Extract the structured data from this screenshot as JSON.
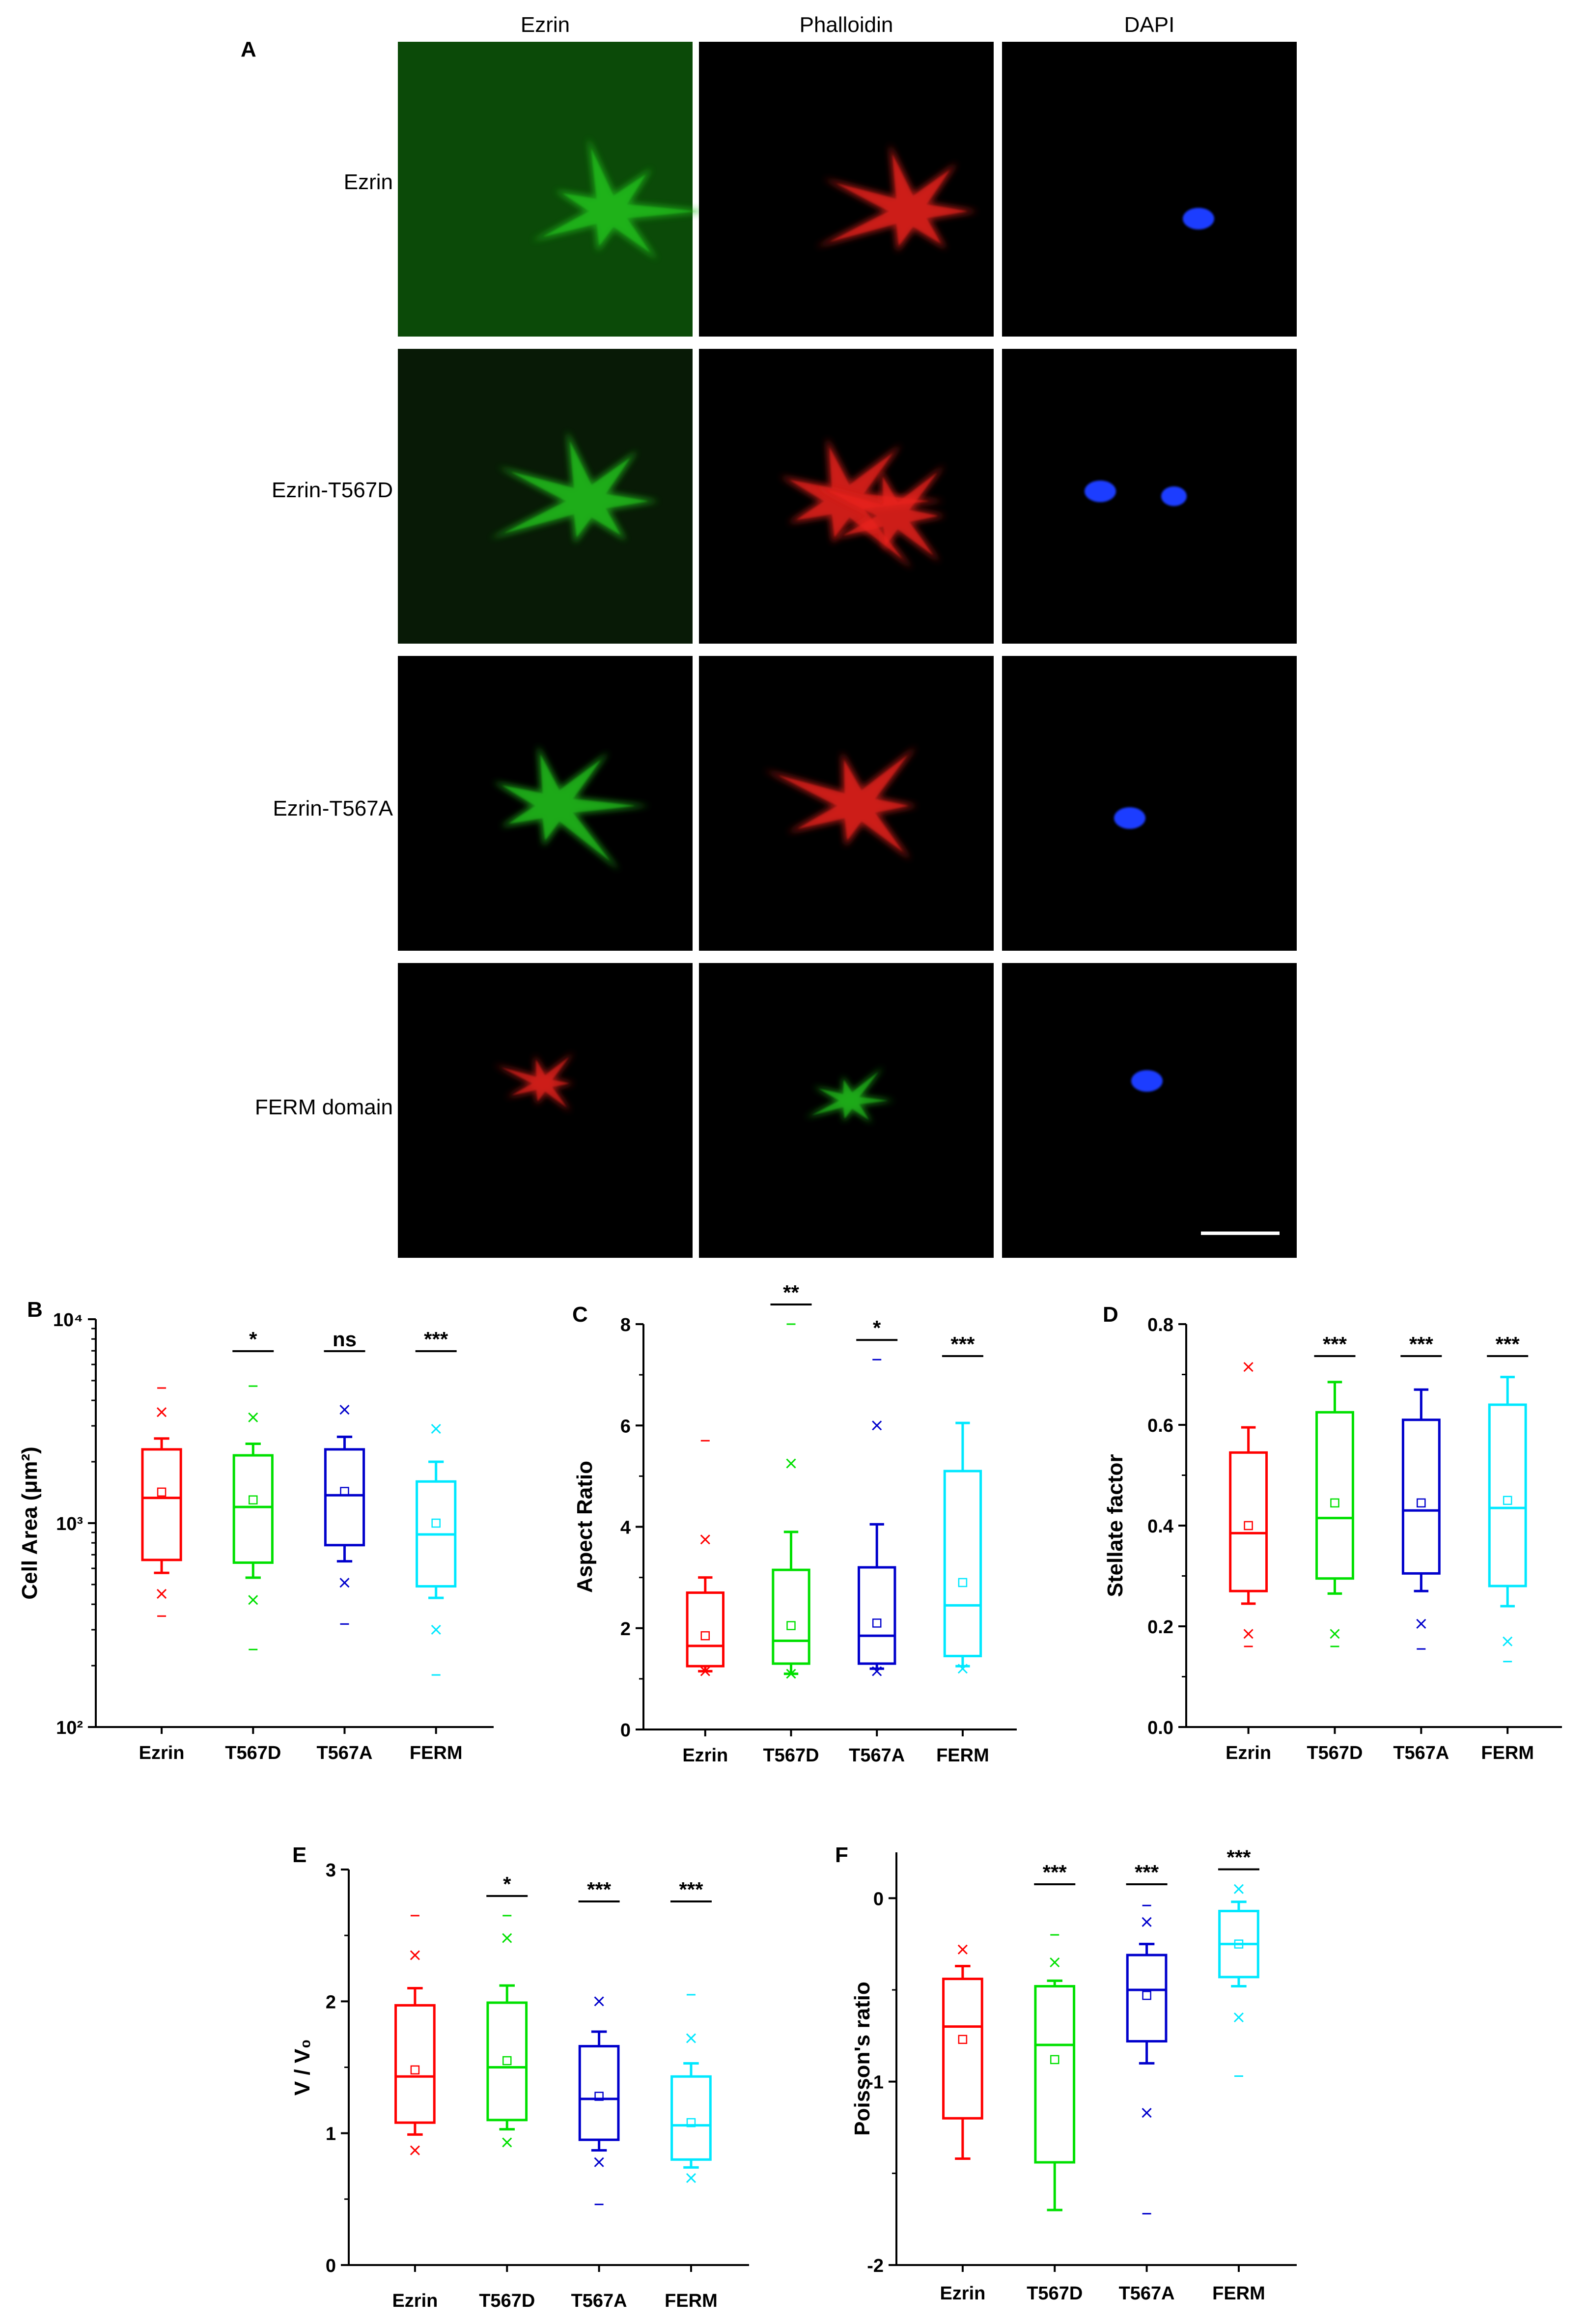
{
  "panel_a": {
    "label": "A",
    "column_headers": [
      "Ezrin",
      "Phalloidin",
      "DAPI"
    ],
    "row_labels": [
      "Ezrin",
      "Ezrin-T567D",
      "Ezrin-T567A",
      "FERM domain"
    ],
    "channel_colors": {
      "green": "#22c01e",
      "red": "#e8231b",
      "blue": "#1f3cff"
    },
    "image_grid": [
      [
        "green",
        "red",
        "blue"
      ],
      [
        "green",
        "red",
        "blue"
      ],
      [
        "green",
        "red",
        "blue"
      ],
      [
        "red",
        "green",
        "blue"
      ]
    ],
    "scale_bar": "white"
  },
  "series_colors": [
    "#ff0000",
    "#00e000",
    "#0000cc",
    "#00e8ff"
  ],
  "chart_data": [
    {
      "panel": "B",
      "type": "box",
      "ylabel": "Cell Area (μm²)",
      "yscale": "log",
      "ylim": [
        100,
        10000
      ],
      "yticks": [
        100,
        1000,
        10000
      ],
      "ytick_labels": [
        "10²",
        "10³",
        "10⁴"
      ],
      "categories": [
        "Ezrin",
        "T567D",
        "T567A",
        "FERM"
      ],
      "significance": [
        "",
        "*",
        "ns",
        "***"
      ],
      "boxes": [
        {
          "q1": 660,
          "median": 1330,
          "q3": 2300,
          "whisker_low": 570,
          "whisker_high": 2600,
          "mean": 1420,
          "outliers_x": [
            450,
            3500
          ],
          "extremes": [
            350,
            4600
          ]
        },
        {
          "q1": 640,
          "median": 1200,
          "q3": 2150,
          "whisker_low": 540,
          "whisker_high": 2450,
          "mean": 1300,
          "outliers_x": [
            420,
            3300
          ],
          "extremes": [
            240,
            4700
          ]
        },
        {
          "q1": 780,
          "median": 1370,
          "q3": 2300,
          "whisker_low": 650,
          "whisker_high": 2650,
          "mean": 1430,
          "outliers_x": [
            510,
            3600
          ],
          "extremes": [
            320
          ]
        },
        {
          "q1": 490,
          "median": 880,
          "q3": 1600,
          "whisker_low": 430,
          "whisker_high": 2000,
          "mean": 1000,
          "outliers_x": [
            300,
            2900
          ],
          "extremes": [
            180
          ]
        }
      ]
    },
    {
      "panel": "C",
      "type": "box",
      "ylabel": "Aspect Ratio",
      "ylim": [
        0,
        8
      ],
      "yticks": [
        0,
        2,
        4,
        6,
        8
      ],
      "categories": [
        "Ezrin",
        "T567D",
        "T567A",
        "FERM"
      ],
      "significance": [
        "",
        "**",
        "*",
        "***"
      ],
      "boxes": [
        {
          "q1": 1.25,
          "median": 1.65,
          "q3": 2.7,
          "whisker_low": 1.15,
          "whisker_high": 3.0,
          "mean": 1.85,
          "outliers_x": [
            1.15,
            3.75
          ],
          "extremes": [
            5.7
          ]
        },
        {
          "q1": 1.3,
          "median": 1.75,
          "q3": 3.15,
          "whisker_low": 1.1,
          "whisker_high": 3.9,
          "mean": 2.05,
          "outliers_x": [
            1.1,
            5.25
          ],
          "extremes": [
            8.0
          ]
        },
        {
          "q1": 1.3,
          "median": 1.85,
          "q3": 3.2,
          "whisker_low": 1.2,
          "whisker_high": 4.05,
          "mean": 2.1,
          "outliers_x": [
            1.15,
            6.0
          ],
          "extremes": [
            7.3
          ]
        },
        {
          "q1": 1.45,
          "median": 2.45,
          "q3": 5.1,
          "whisker_low": 1.25,
          "whisker_high": 6.05,
          "mean": 2.9,
          "outliers_x": [
            1.2
          ],
          "extremes": []
        }
      ]
    },
    {
      "panel": "D",
      "type": "box",
      "ylabel": "Stellate factor",
      "ylim": [
        0,
        0.8
      ],
      "yticks": [
        0.0,
        0.2,
        0.4,
        0.6,
        0.8
      ],
      "ytick_labels": [
        "0.0",
        "0.2",
        "0.4",
        "0.6",
        "0.8"
      ],
      "categories": [
        "Ezrin",
        "T567D",
        "T567A",
        "FERM"
      ],
      "significance": [
        "",
        "***",
        "***",
        "***"
      ],
      "boxes": [
        {
          "q1": 0.27,
          "median": 0.385,
          "q3": 0.545,
          "whisker_low": 0.245,
          "whisker_high": 0.595,
          "mean": 0.4,
          "outliers_x": [
            0.185,
            0.715
          ],
          "extremes": [
            0.16
          ]
        },
        {
          "q1": 0.295,
          "median": 0.415,
          "q3": 0.625,
          "whisker_low": 0.265,
          "whisker_high": 0.685,
          "mean": 0.445,
          "outliers_x": [
            0.185
          ],
          "extremes": [
            0.16
          ]
        },
        {
          "q1": 0.305,
          "median": 0.43,
          "q3": 0.61,
          "whisker_low": 0.27,
          "whisker_high": 0.67,
          "mean": 0.445,
          "outliers_x": [
            0.205
          ],
          "extremes": [
            0.155
          ]
        },
        {
          "q1": 0.28,
          "median": 0.435,
          "q3": 0.64,
          "whisker_low": 0.24,
          "whisker_high": 0.695,
          "mean": 0.45,
          "outliers_x": [
            0.17
          ],
          "extremes": [
            0.13
          ]
        }
      ]
    },
    {
      "panel": "E",
      "type": "box",
      "ylabel": "V / V₀",
      "ylim": [
        0,
        3
      ],
      "yticks": [
        0,
        1,
        2,
        3
      ],
      "categories": [
        "Ezrin",
        "T567D",
        "T567A",
        "FERM"
      ],
      "significance": [
        "",
        "*",
        "***",
        "***"
      ],
      "boxes": [
        {
          "q1": 1.08,
          "median": 1.43,
          "q3": 1.97,
          "whisker_low": 0.99,
          "whisker_high": 2.1,
          "mean": 1.48,
          "outliers_x": [
            0.87,
            2.35
          ],
          "extremes": [
            2.65
          ]
        },
        {
          "q1": 1.1,
          "median": 1.5,
          "q3": 1.99,
          "whisker_low": 1.03,
          "whisker_high": 2.12,
          "mean": 1.55,
          "outliers_x": [
            0.93,
            2.48
          ],
          "extremes": [
            2.65
          ]
        },
        {
          "q1": 0.95,
          "median": 1.26,
          "q3": 1.66,
          "whisker_low": 0.87,
          "whisker_high": 1.77,
          "mean": 1.28,
          "outliers_x": [
            0.78,
            2.0
          ],
          "extremes": [
            0.46
          ]
        },
        {
          "q1": 0.8,
          "median": 1.06,
          "q3": 1.43,
          "whisker_low": 0.74,
          "whisker_high": 1.53,
          "mean": 1.08,
          "outliers_x": [
            0.66,
            1.72
          ],
          "extremes": [
            2.05
          ]
        }
      ]
    },
    {
      "panel": "F",
      "type": "box",
      "ylabel": "Poisson's ratio",
      "ylim": [
        -2,
        0.25
      ],
      "yticks": [
        -2,
        -1,
        0
      ],
      "categories": [
        "Ezrin",
        "T567D",
        "T567A",
        "FERM"
      ],
      "significance": [
        "",
        "***",
        "***",
        "***"
      ],
      "boxes": [
        {
          "q1": -1.2,
          "median": -0.7,
          "q3": -0.44,
          "whisker_low": -1.42,
          "whisker_high": -0.37,
          "mean": -0.77,
          "outliers_x": [
            -0.28
          ],
          "extremes": []
        },
        {
          "q1": -1.44,
          "median": -0.8,
          "q3": -0.48,
          "whisker_low": -1.7,
          "whisker_high": -0.45,
          "mean": -0.88,
          "outliers_x": [
            -0.35
          ],
          "extremes": [
            -0.2
          ]
        },
        {
          "q1": -0.78,
          "median": -0.5,
          "q3": -0.31,
          "whisker_low": -0.9,
          "whisker_high": -0.25,
          "mean": -0.53,
          "outliers_x": [
            -1.17,
            -0.13
          ],
          "extremes": [
            -1.72,
            -0.04
          ]
        },
        {
          "q1": -0.43,
          "median": -0.25,
          "q3": -0.07,
          "whisker_low": -0.48,
          "whisker_high": -0.02,
          "mean": -0.25,
          "outliers_x": [
            -0.65,
            0.05
          ],
          "extremes": [
            -0.97
          ]
        }
      ]
    }
  ]
}
